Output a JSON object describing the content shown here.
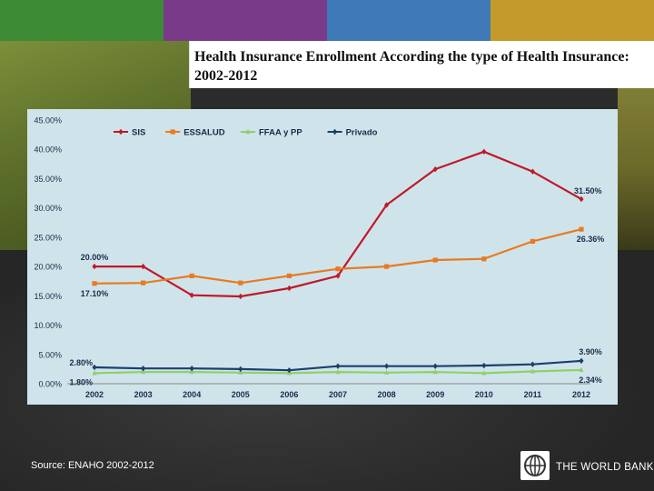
{
  "slide": {
    "title": "Health Insurance Enrollment According the type of Health Insurance: 2002-2012",
    "source": "Source:  ENAHO 2002-2012",
    "logo_text": "THE WORLD BANK",
    "band_colors": [
      "#3d8a34",
      "#7a3a8a",
      "#3f79b8",
      "#c49a2a"
    ]
  },
  "chart_data": {
    "type": "line",
    "title": "",
    "xlabel": "",
    "ylabel": "",
    "categories": [
      "2002",
      "2003",
      "2004",
      "2005",
      "2006",
      "2007",
      "2008",
      "2009",
      "2010",
      "2011",
      "2012"
    ],
    "ylim": [
      0,
      45
    ],
    "yticks": [
      "0.00%",
      "5.00%",
      "10.00%",
      "15.00%",
      "20.00%",
      "25.00%",
      "30.00%",
      "35.00%",
      "40.00%",
      "45.00%"
    ],
    "legend_position": "top-left",
    "grid": false,
    "series": [
      {
        "name": "SIS",
        "color": "#c0182a",
        "marker": "diamond",
        "values": [
          20.0,
          20.0,
          15.1,
          14.9,
          16.3,
          18.4,
          30.5,
          36.6,
          39.6,
          36.2,
          31.5
        ]
      },
      {
        "name": "ESSALUD",
        "color": "#e87a22",
        "marker": "square",
        "values": [
          17.1,
          17.2,
          18.4,
          17.2,
          18.4,
          19.6,
          20.0,
          21.1,
          21.3,
          24.3,
          26.36
        ]
      },
      {
        "name": "FFAA y PP",
        "color": "#8fd06a",
        "marker": "triangle",
        "values": [
          1.8,
          2.0,
          2.0,
          1.9,
          1.8,
          2.0,
          1.9,
          2.0,
          1.8,
          2.1,
          2.34
        ]
      },
      {
        "name": "Privado",
        "color": "#1c3f6e",
        "marker": "diamond",
        "values": [
          2.8,
          2.6,
          2.6,
          2.5,
          2.3,
          3.0,
          3.0,
          3.0,
          3.1,
          3.3,
          3.9
        ]
      }
    ],
    "annotations": [
      {
        "series": 0,
        "index": 0,
        "text": "20.00%",
        "side": "above"
      },
      {
        "series": 1,
        "index": 0,
        "text": "17.10%",
        "side": "below"
      },
      {
        "series": 3,
        "index": 0,
        "text": "2.80%",
        "side": "left-above"
      },
      {
        "series": 2,
        "index": 0,
        "text": "1.80%",
        "side": "left-below"
      },
      {
        "series": 0,
        "index": 10,
        "text": "31.50%",
        "side": "right-above"
      },
      {
        "series": 1,
        "index": 10,
        "text": "26.36%",
        "side": "below"
      },
      {
        "series": 3,
        "index": 10,
        "text": "3.90%",
        "side": "above"
      },
      {
        "series": 2,
        "index": 10,
        "text": "2.34%",
        "side": "below"
      }
    ]
  }
}
